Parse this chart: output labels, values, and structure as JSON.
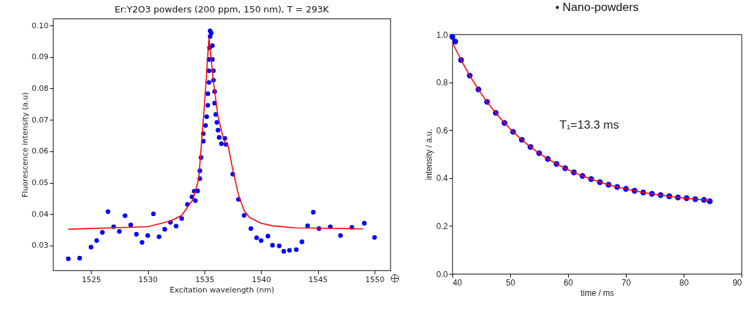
{
  "chart_data": [
    {
      "type": "scatter",
      "title": "Er:Y2O3 powders (200 ppm, 150 nm), T = 293K",
      "xlabel": "Excitation wavelength (nm)",
      "ylabel": "Fluorescence intensity (a.u)",
      "xlim": [
        1521.65,
        1551.4
      ],
      "ylim": [
        0.0221,
        0.1022
      ],
      "xticks": [
        1525,
        1530,
        1535,
        1540,
        1545,
        1550
      ],
      "yticks": [
        {
          "value": 0.03,
          "label": "0.03"
        },
        {
          "value": 0.04,
          "label": "0.04"
        },
        {
          "value": 0.05,
          "label": "0.05"
        },
        {
          "value": 0.06,
          "label": "0.06"
        },
        {
          "value": 0.07,
          "label": "0.07"
        },
        {
          "value": 0.08,
          "label": "0.08"
        },
        {
          "value": 0.09,
          "label": "0.09"
        },
        {
          "value": 0.1,
          "label": "0.10"
        }
      ],
      "series": [
        {
          "marker": "circle",
          "color": "#0000ff",
          "x": [
            1523.0,
            1524.0,
            1525.0,
            1525.5,
            1526.0,
            1526.5,
            1527.0,
            1527.5,
            1528.0,
            1528.5,
            1529.0,
            1529.5,
            1530.0,
            1530.5,
            1531.0,
            1531.5,
            1532.0,
            1532.5,
            1533.0,
            1533.5,
            1533.9,
            1534.1,
            1534.2,
            1534.4,
            1534.6,
            1534.6,
            1534.7,
            1534.9,
            1534.9,
            1535.1,
            1535.2,
            1535.3,
            1535.3,
            1535.4,
            1535.4,
            1535.4,
            1535.45,
            1535.5,
            1535.5,
            1535.6,
            1535.7,
            1535.7,
            1535.8,
            1535.8,
            1535.9,
            1535.9,
            1536.0,
            1536.1,
            1536.2,
            1536.3,
            1536.5,
            1536.8,
            1536.9,
            1537.5,
            1538.0,
            1538.5,
            1539.1,
            1539.6,
            1540.0,
            1540.6,
            1541.0,
            1541.6,
            1542.0,
            1542.5,
            1543.1,
            1543.6,
            1544.1,
            1544.6,
            1545.1,
            1546.1,
            1547.0,
            1548.0,
            1549.1,
            1550.0
          ],
          "values": [
            0.0258,
            0.026,
            0.0295,
            0.0316,
            0.0342,
            0.0408,
            0.036,
            0.0345,
            0.0395,
            0.0366,
            0.0336,
            0.031,
            0.0332,
            0.0401,
            0.0328,
            0.0352,
            0.0374,
            0.0362,
            0.0386,
            0.0431,
            0.0455,
            0.0473,
            0.0443,
            0.0474,
            0.0513,
            0.0538,
            0.058,
            0.0632,
            0.0656,
            0.0682,
            0.071,
            0.0746,
            0.0783,
            0.0819,
            0.0856,
            0.0892,
            0.0929,
            0.0965,
            0.0983,
            0.0976,
            0.0936,
            0.0892,
            0.0856,
            0.0826,
            0.079,
            0.0753,
            0.0717,
            0.0692,
            0.0667,
            0.0644,
            0.0624,
            0.0641,
            0.0622,
            0.0527,
            0.0447,
            0.0396,
            0.0354,
            0.0325,
            0.0316,
            0.033,
            0.0301,
            0.0299,
            0.0282,
            0.0285,
            0.0287,
            0.0312,
            0.0363,
            0.0406,
            0.0354,
            0.036,
            0.0332,
            0.0358,
            0.0371,
            0.0326
          ]
        },
        {
          "type": "line",
          "color": "#ff0000",
          "x": [
            1523,
            1530,
            1532,
            1533,
            1534,
            1534.5,
            1535,
            1535.4,
            1535.8,
            1536.2,
            1536.7,
            1537.1,
            1537.5,
            1538,
            1538.5,
            1539,
            1540,
            1541,
            1543,
            1546,
            1549
          ],
          "values": [
            0.0352,
            0.036,
            0.0378,
            0.0396,
            0.0447,
            0.0513,
            0.0746,
            0.0961,
            0.0819,
            0.071,
            0.0637,
            0.0615,
            0.0542,
            0.0462,
            0.0411,
            0.0389,
            0.0371,
            0.0363,
            0.0356,
            0.0355,
            0.0353
          ]
        }
      ]
    },
    {
      "type": "scatter",
      "title": "• Nano-powders",
      "xlabel": "time / ms",
      "ylabel": "intensity / a.u.",
      "annotations": [
        "T₁=13.3 ms"
      ],
      "xlim": [
        40,
        90
      ],
      "ylim": [
        0,
        1
      ],
      "xticks": [
        40,
        50,
        60,
        70,
        80,
        90
      ],
      "yticks": [
        {
          "value": 0,
          "label": "0.0"
        },
        0.2,
        0.4,
        0.6,
        0.8,
        {
          "value": 1,
          "label": "1.0"
        }
      ],
      "series": [
        {
          "marker": "circle",
          "color": "#0000ff",
          "x": [
            40,
            40.5,
            41.5,
            43,
            44.5,
            46,
            47.5,
            49,
            50.5,
            52,
            53.5,
            55,
            56.5,
            58,
            59.5,
            61,
            62.5,
            64,
            65.5,
            67,
            68.5,
            70,
            71.5,
            73,
            74.5,
            76,
            77.5,
            79,
            80.5,
            82,
            83.5,
            84.5
          ],
          "values": [
            0.99,
            0.97,
            0.893,
            0.828,
            0.77,
            0.718,
            0.672,
            0.63,
            0.593,
            0.56,
            0.53,
            0.504,
            0.48,
            0.459,
            0.441,
            0.424,
            0.409,
            0.396,
            0.383,
            0.372,
            0.363,
            0.355,
            0.347,
            0.34,
            0.334,
            0.329,
            0.324,
            0.319,
            0.316,
            0.312,
            0.309,
            0.303
          ]
        },
        {
          "type": "line",
          "color": "#ff0000",
          "x": [
            40,
            41.5,
            43,
            44.5,
            46,
            47.5,
            49,
            50.5,
            52,
            53.5,
            55,
            56.5,
            58,
            59.5,
            61,
            62.5,
            64,
            65.5,
            67,
            68.5,
            70,
            71.5,
            73,
            74.5,
            76,
            77.5,
            79,
            80.5,
            82,
            83.5,
            84.5
          ],
          "values": [
            0.966,
            0.893,
            0.828,
            0.77,
            0.718,
            0.672,
            0.63,
            0.593,
            0.56,
            0.53,
            0.504,
            0.48,
            0.459,
            0.441,
            0.424,
            0.409,
            0.396,
            0.383,
            0.372,
            0.363,
            0.355,
            0.347,
            0.34,
            0.334,
            0.329,
            0.324,
            0.319,
            0.316,
            0.312,
            0.309,
            0.307
          ]
        }
      ]
    }
  ]
}
